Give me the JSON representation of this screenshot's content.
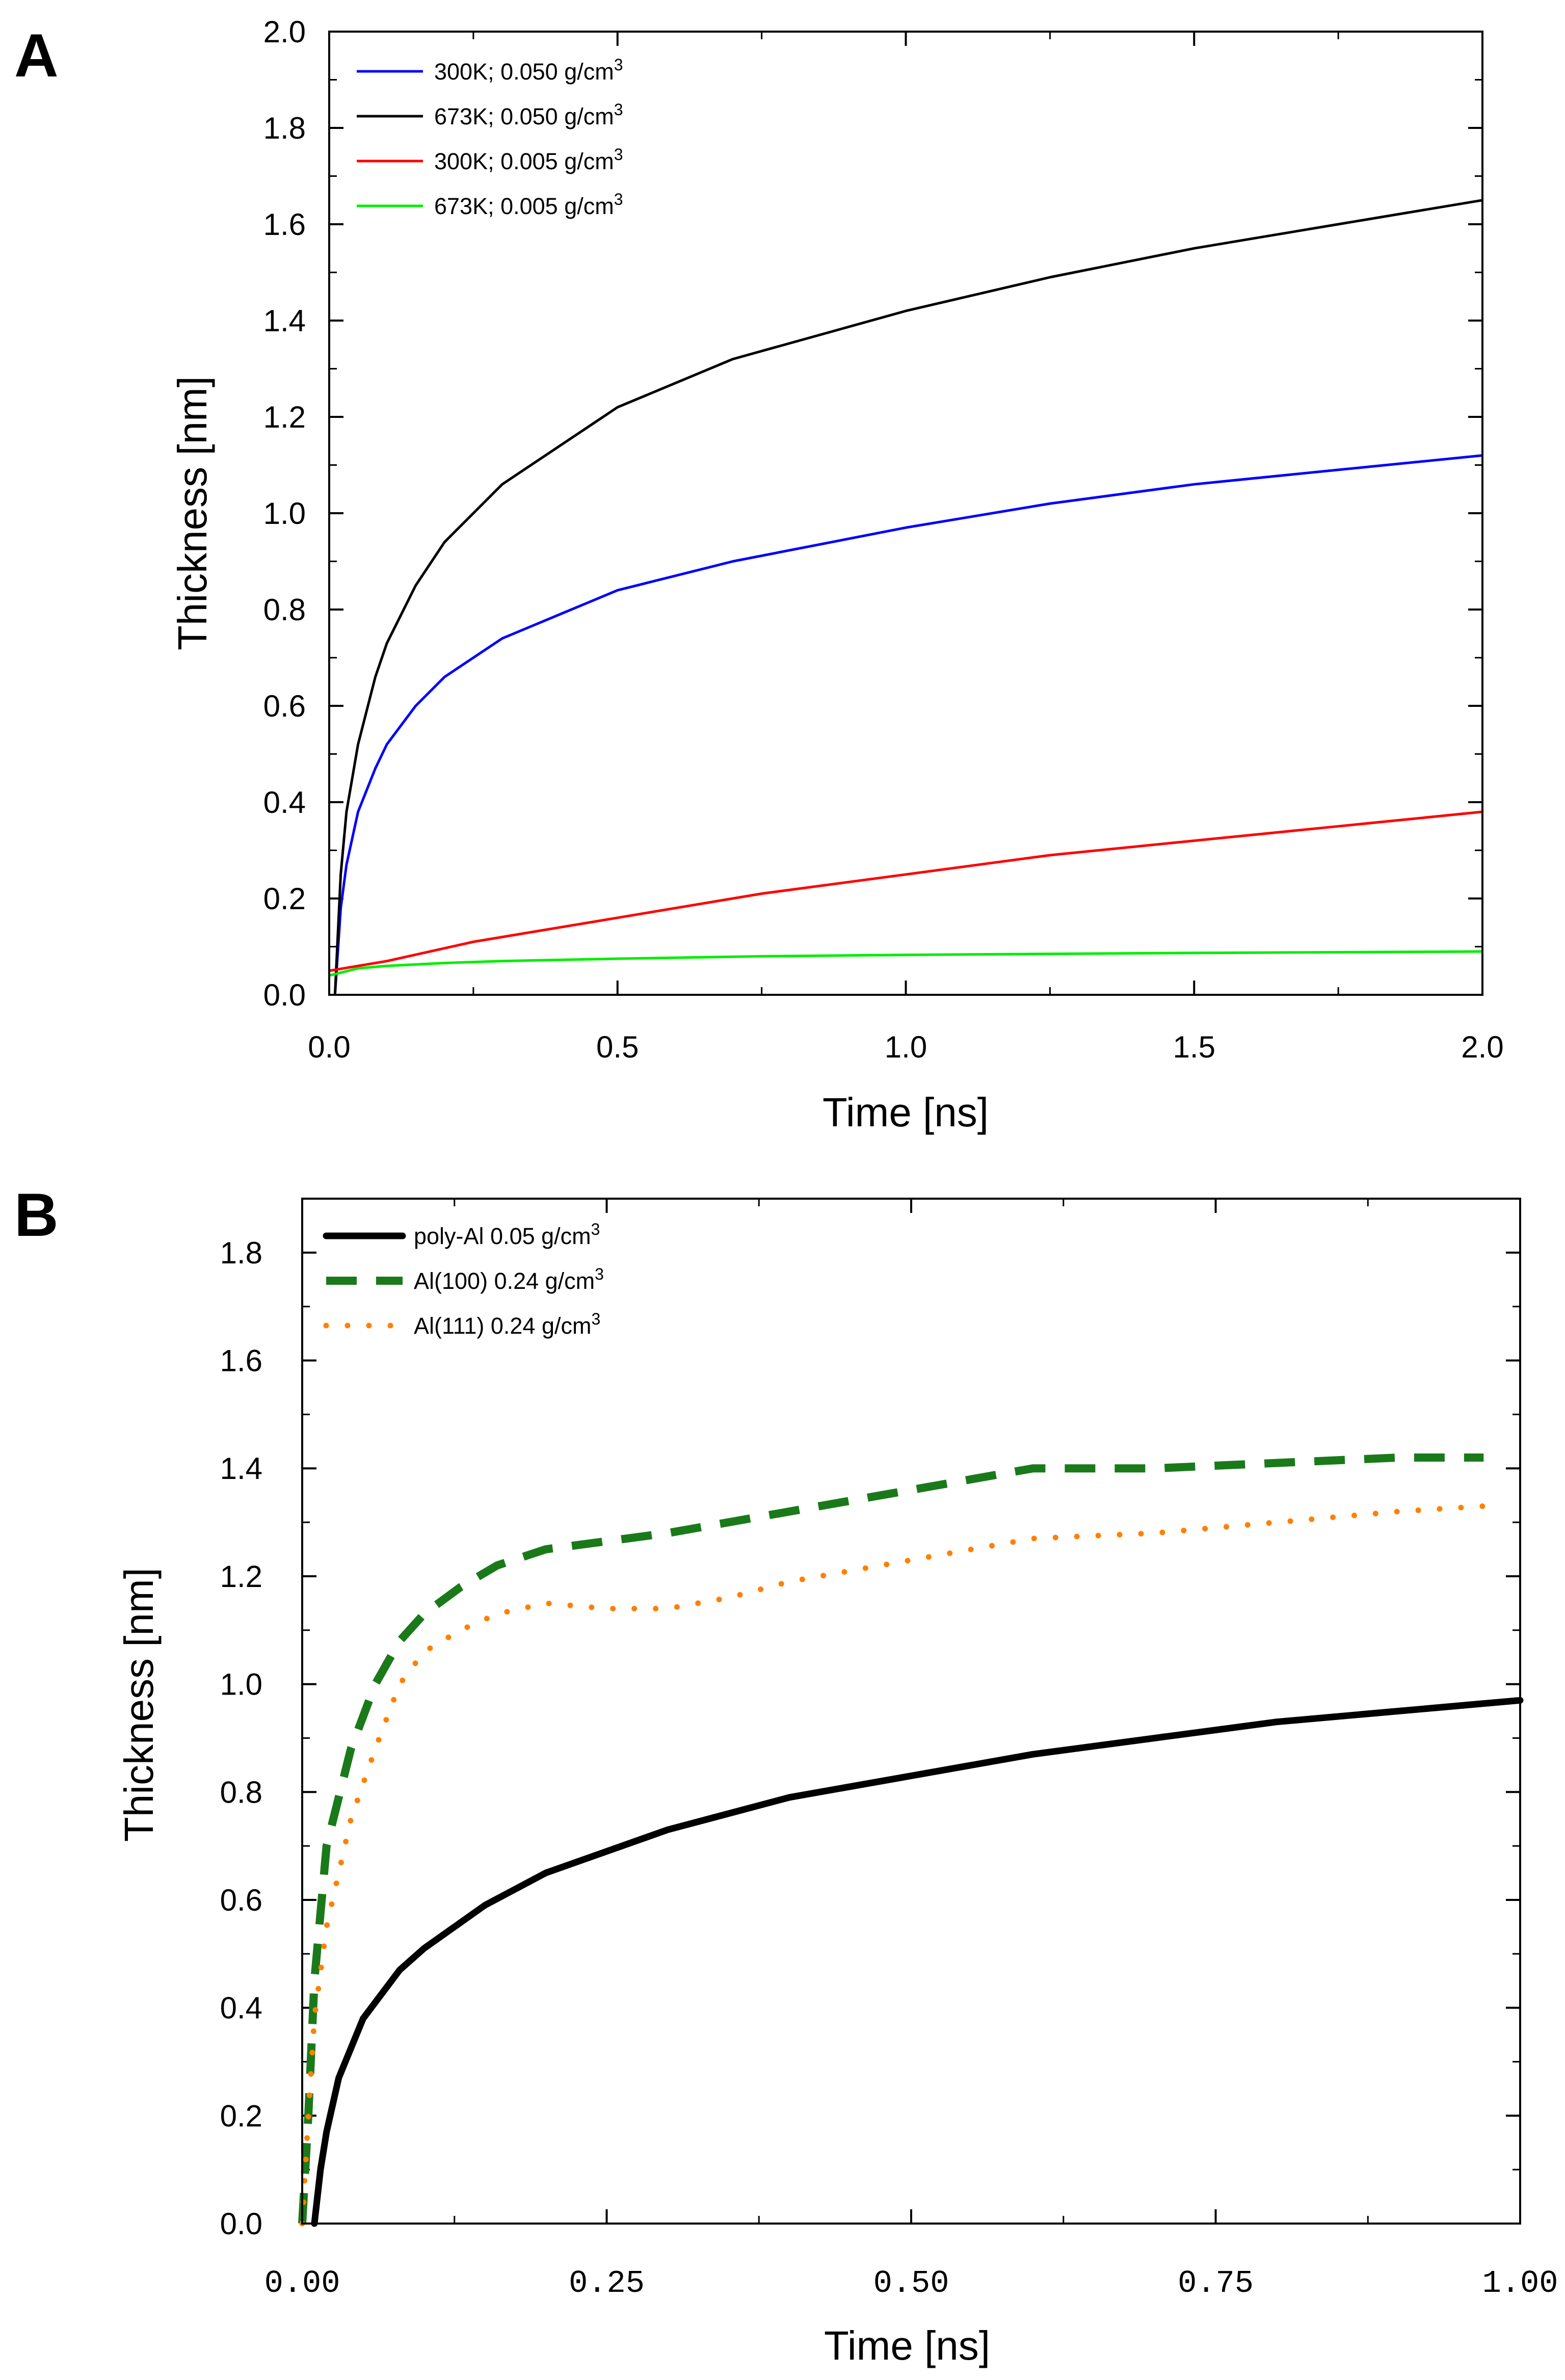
{
  "chart_data": [
    {
      "panel": "A",
      "type": "line",
      "xlabel": "Time [ns]",
      "ylabel": "Thickness [nm]",
      "xlim": [
        0,
        2.0
      ],
      "ylim": [
        0,
        2.0
      ],
      "xticks": [
        "0.0",
        "0.5",
        "1.0",
        "1.5",
        "2.0"
      ],
      "yticks": [
        "0.0",
        "0.2",
        "0.4",
        "0.6",
        "0.8",
        "1.0",
        "1.2",
        "1.4",
        "1.6",
        "1.8",
        "2.0"
      ],
      "legend_position": "top-left",
      "series": [
        {
          "name": "300K; 0.050 g/cm",
          "sup": "3",
          "color": "#0000ff",
          "style": "solid",
          "x": [
            0.01,
            0.02,
            0.03,
            0.05,
            0.08,
            0.1,
            0.15,
            0.2,
            0.3,
            0.5,
            0.7,
            1.0,
            1.25,
            1.5,
            1.75,
            2.0
          ],
          "y": [
            0.0,
            0.18,
            0.27,
            0.38,
            0.47,
            0.52,
            0.6,
            0.66,
            0.74,
            0.84,
            0.9,
            0.97,
            1.02,
            1.06,
            1.09,
            1.12
          ]
        },
        {
          "name": "673K; 0.050 g/cm",
          "sup": "3",
          "color": "#000000",
          "style": "solid",
          "x": [
            0.01,
            0.02,
            0.03,
            0.05,
            0.08,
            0.1,
            0.15,
            0.2,
            0.3,
            0.5,
            0.7,
            1.0,
            1.25,
            1.5,
            1.75,
            2.0
          ],
          "y": [
            0.0,
            0.25,
            0.38,
            0.52,
            0.66,
            0.73,
            0.85,
            0.94,
            1.06,
            1.22,
            1.32,
            1.42,
            1.49,
            1.55,
            1.6,
            1.65
          ]
        },
        {
          "name": "300K; 0.005 g/cm",
          "sup": "3",
          "color": "#ff0000",
          "style": "solid",
          "x": [
            0.0,
            0.1,
            0.25,
            0.5,
            0.75,
            1.0,
            1.25,
            1.5,
            1.75,
            2.0
          ],
          "y": [
            0.05,
            0.07,
            0.11,
            0.16,
            0.21,
            0.25,
            0.29,
            0.32,
            0.35,
            0.38
          ]
        },
        {
          "name": "673K; 0.005 g/cm",
          "sup": "3",
          "color": "#00ee00",
          "style": "solid",
          "x": [
            0.0,
            0.05,
            0.1,
            0.2,
            0.3,
            0.5,
            0.75,
            1.0,
            1.5,
            2.0
          ],
          "y": [
            0.04,
            0.055,
            0.06,
            0.066,
            0.07,
            0.075,
            0.08,
            0.083,
            0.087,
            0.09
          ]
        }
      ]
    },
    {
      "panel": "B",
      "type": "line",
      "xlabel": "Time [ns]",
      "ylabel": "Thickness [nm]",
      "xlim": [
        0,
        1.0
      ],
      "ylim": [
        0,
        1.9
      ],
      "xticks": [
        "0.00",
        "0.25",
        "0.50",
        "0.75",
        "1.00"
      ],
      "yticks": [
        "0.0",
        "0.2",
        "0.4",
        "0.6",
        "0.8",
        "1.0",
        "1.2",
        "1.4",
        "1.6",
        "1.8"
      ],
      "legend_position": "top-left",
      "series": [
        {
          "name": "poly-Al 0.05 g/cm",
          "sup": "3",
          "color": "#000000",
          "style": "solid",
          "x": [
            0.01,
            0.015,
            0.02,
            0.03,
            0.05,
            0.08,
            0.1,
            0.15,
            0.2,
            0.3,
            0.4,
            0.5,
            0.6,
            0.7,
            0.8,
            0.9,
            1.0
          ],
          "y": [
            0.0,
            0.1,
            0.17,
            0.27,
            0.38,
            0.47,
            0.51,
            0.59,
            0.65,
            0.73,
            0.79,
            0.83,
            0.87,
            0.9,
            0.93,
            0.95,
            0.97
          ]
        },
        {
          "name": "Al(100) 0.24 g/cm",
          "sup": "3",
          "color": "#1a7a1a",
          "style": "dashed",
          "x": [
            0.0,
            0.005,
            0.01,
            0.02,
            0.04,
            0.06,
            0.08,
            0.1,
            0.13,
            0.16,
            0.2,
            0.3,
            0.4,
            0.5,
            0.6,
            0.7,
            0.8,
            0.9,
            0.97
          ],
          "y": [
            0.0,
            0.2,
            0.45,
            0.7,
            0.88,
            1.0,
            1.08,
            1.13,
            1.18,
            1.22,
            1.25,
            1.28,
            1.32,
            1.36,
            1.4,
            1.4,
            1.41,
            1.42,
            1.42
          ]
        },
        {
          "name": "Al(111) 0.24 g/cm",
          "sup": "3",
          "color": "#ff8000",
          "style": "dotted",
          "x": [
            0.0,
            0.005,
            0.01,
            0.02,
            0.04,
            0.06,
            0.08,
            0.1,
            0.13,
            0.16,
            0.2,
            0.25,
            0.3,
            0.35,
            0.4,
            0.5,
            0.6,
            0.7,
            0.8,
            0.9,
            0.97
          ],
          "y": [
            0.0,
            0.2,
            0.38,
            0.55,
            0.75,
            0.88,
            1.0,
            1.06,
            1.1,
            1.13,
            1.15,
            1.14,
            1.14,
            1.16,
            1.19,
            1.23,
            1.27,
            1.28,
            1.3,
            1.32,
            1.33
          ]
        }
      ]
    }
  ]
}
